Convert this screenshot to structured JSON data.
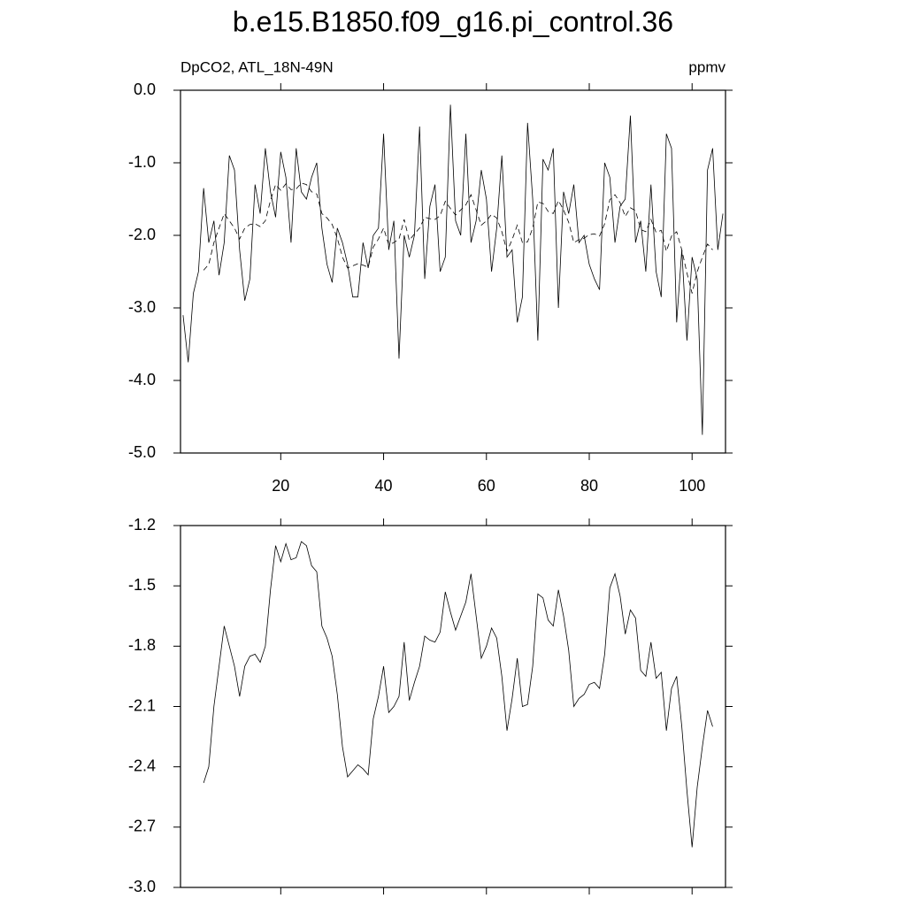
{
  "chart_data": [
    {
      "type": "line",
      "title": "b.e15.B1850.f09_g16.pi_control.36",
      "subtitle_left": "DpCO2, ATL_18N-49N",
      "subtitle_right": "ppmv",
      "x": [
        1,
        2,
        3,
        4,
        5,
        6,
        7,
        8,
        9,
        10,
        11,
        12,
        13,
        14,
        15,
        16,
        17,
        18,
        19,
        20,
        21,
        22,
        23,
        24,
        25,
        26,
        27,
        28,
        29,
        30,
        31,
        32,
        33,
        34,
        35,
        36,
        37,
        38,
        39,
        40,
        41,
        42,
        43,
        44,
        45,
        46,
        47,
        48,
        49,
        50,
        51,
        52,
        53,
        54,
        55,
        56,
        57,
        58,
        59,
        60,
        61,
        62,
        63,
        64,
        65,
        66,
        67,
        68,
        69,
        70,
        71,
        72,
        73,
        74,
        75,
        76,
        77,
        78,
        79,
        80,
        81,
        82,
        83,
        84,
        85,
        86,
        87,
        88,
        89,
        90,
        91,
        92,
        93,
        94,
        95,
        96,
        97,
        98,
        99,
        100,
        101,
        102,
        103,
        104,
        105,
        106
      ],
      "series": [
        {
          "color": "#000000",
          "dash": false,
          "values": [
            -3.1,
            -3.75,
            -2.8,
            -2.5,
            -1.35,
            -2.1,
            -1.8,
            -2.55,
            -2.1,
            -0.9,
            -1.1,
            -2.2,
            -2.9,
            -2.6,
            -1.3,
            -1.7,
            -0.8,
            -1.4,
            -1.75,
            -0.85,
            -1.2,
            -2.1,
            -0.8,
            -1.4,
            -1.5,
            -1.2,
            -1.0,
            -1.9,
            -2.4,
            -2.65,
            -1.9,
            -2.1,
            -2.4,
            -2.85,
            -2.85,
            -2.1,
            -2.45,
            -2.0,
            -1.9,
            -0.6,
            -2.2,
            -1.8,
            -3.7,
            -2.0,
            -2.3,
            -2.0,
            -0.5,
            -2.6,
            -1.6,
            -1.3,
            -2.5,
            -2.3,
            -0.2,
            -1.8,
            -2.0,
            -0.6,
            -2.1,
            -1.8,
            -1.1,
            -1.5,
            -2.5,
            -1.9,
            -0.9,
            -2.3,
            -2.2,
            -3.2,
            -2.85,
            -0.45,
            -1.5,
            -3.45,
            -0.95,
            -1.1,
            -0.8,
            -3.0,
            -1.4,
            -1.7,
            -1.3,
            -2.1,
            -2.0,
            -2.4,
            -2.6,
            -2.75,
            -1.0,
            -1.2,
            -2.1,
            -1.6,
            -1.5,
            -0.35,
            -2.1,
            -1.8,
            -2.5,
            -1.3,
            -2.5,
            -2.85,
            -0.6,
            -0.8,
            -3.2,
            -2.2,
            -3.45,
            -2.3,
            -2.6,
            -4.75,
            -1.1,
            -0.8,
            -2.2,
            -1.7
          ]
        },
        {
          "color": "#000000",
          "dash": true,
          "values": [
            null,
            null,
            null,
            null,
            -2.48,
            -2.4,
            -2.1,
            -1.9,
            -1.7,
            -1.8,
            -1.9,
            -2.05,
            -1.9,
            -1.85,
            -1.84,
            -1.88,
            -1.8,
            -1.52,
            -1.3,
            -1.38,
            -1.29,
            -1.37,
            -1.36,
            -1.28,
            -1.3,
            -1.4,
            -1.43,
            -1.7,
            -1.76,
            -1.85,
            -2.04,
            -2.3,
            -2.45,
            -2.42,
            -2.39,
            -2.41,
            -2.44,
            -2.16,
            -2.05,
            -1.9,
            -2.13,
            -2.1,
            -2.05,
            -1.78,
            -2.07,
            -1.98,
            -1.9,
            -1.75,
            -1.77,
            -1.78,
            -1.73,
            -1.53,
            -1.63,
            -1.72,
            -1.65,
            -1.58,
            -1.44,
            -1.65,
            -1.86,
            -1.8,
            -1.71,
            -1.76,
            -1.95,
            -2.22,
            -2.06,
            -1.86,
            -2.1,
            -2.09,
            -1.9,
            -1.54,
            -1.56,
            -1.67,
            -1.7,
            -1.52,
            -1.65,
            -1.82,
            -2.1,
            -2.06,
            -2.04,
            -1.99,
            -1.98,
            -2.01,
            -1.84,
            -1.51,
            -1.44,
            -1.55,
            -1.74,
            -1.62,
            -1.66,
            -1.92,
            -1.95,
            -1.78,
            -1.96,
            -1.93,
            -2.22,
            -2.01,
            -1.95,
            -2.2,
            -2.52,
            -2.8,
            -2.5,
            -2.3,
            -2.12,
            -2.2,
            null,
            null
          ]
        }
      ],
      "xlim": [
        0.5,
        106.5
      ],
      "xticks": [
        20,
        40,
        60,
        80,
        100
      ],
      "xtick_labels": true,
      "ylim": [
        -5,
        0
      ],
      "yticks": [
        {
          "value": 0,
          "label": "0.0"
        },
        {
          "value": -1,
          "label": "-1.0"
        },
        {
          "value": -2,
          "label": "-2.0"
        },
        {
          "value": -3,
          "label": "-3.0"
        },
        {
          "value": -4,
          "label": "-4.0"
        },
        {
          "value": -5,
          "label": "-5.0"
        }
      ]
    },
    {
      "type": "line",
      "x": [
        1,
        2,
        3,
        4,
        5,
        6,
        7,
        8,
        9,
        10,
        11,
        12,
        13,
        14,
        15,
        16,
        17,
        18,
        19,
        20,
        21,
        22,
        23,
        24,
        25,
        26,
        27,
        28,
        29,
        30,
        31,
        32,
        33,
        34,
        35,
        36,
        37,
        38,
        39,
        40,
        41,
        42,
        43,
        44,
        45,
        46,
        47,
        48,
        49,
        50,
        51,
        52,
        53,
        54,
        55,
        56,
        57,
        58,
        59,
        60,
        61,
        62,
        63,
        64,
        65,
        66,
        67,
        68,
        69,
        70,
        71,
        72,
        73,
        74,
        75,
        76,
        77,
        78,
        79,
        80,
        81,
        82,
        83,
        84,
        85,
        86,
        87,
        88,
        89,
        90,
        91,
        92,
        93,
        94,
        95,
        96,
        97,
        98,
        99,
        100,
        101,
        102,
        103,
        104,
        105,
        106
      ],
      "series": [
        {
          "color": "#000000",
          "dash": false,
          "values": [
            null,
            null,
            null,
            null,
            -2.48,
            -2.4,
            -2.1,
            -1.9,
            -1.7,
            -1.8,
            -1.9,
            -2.05,
            -1.9,
            -1.85,
            -1.84,
            -1.88,
            -1.8,
            -1.52,
            -1.3,
            -1.38,
            -1.29,
            -1.37,
            -1.36,
            -1.28,
            -1.3,
            -1.4,
            -1.43,
            -1.7,
            -1.76,
            -1.85,
            -2.04,
            -2.3,
            -2.45,
            -2.42,
            -2.39,
            -2.41,
            -2.44,
            -2.16,
            -2.05,
            -1.9,
            -2.13,
            -2.1,
            -2.05,
            -1.78,
            -2.07,
            -1.98,
            -1.9,
            -1.75,
            -1.77,
            -1.78,
            -1.73,
            -1.53,
            -1.63,
            -1.72,
            -1.65,
            -1.58,
            -1.44,
            -1.65,
            -1.86,
            -1.8,
            -1.71,
            -1.76,
            -1.95,
            -2.22,
            -2.06,
            -1.86,
            -2.1,
            -2.09,
            -1.9,
            -1.54,
            -1.56,
            -1.67,
            -1.7,
            -1.52,
            -1.65,
            -1.82,
            -2.1,
            -2.06,
            -2.04,
            -1.99,
            -1.98,
            -2.01,
            -1.84,
            -1.51,
            -1.44,
            -1.55,
            -1.74,
            -1.62,
            -1.66,
            -1.92,
            -1.95,
            -1.78,
            -1.96,
            -1.93,
            -2.22,
            -2.01,
            -1.95,
            -2.2,
            -2.52,
            -2.8,
            -2.5,
            -2.3,
            -2.12,
            -2.2,
            null,
            null
          ]
        }
      ],
      "xlim": [
        0.5,
        106.5
      ],
      "xticks": [
        20,
        40,
        60,
        80,
        100
      ],
      "xtick_labels": false,
      "ylim": [
        -3,
        -1.2
      ],
      "yticks": [
        {
          "value": -1.2,
          "label": "-1.2"
        },
        {
          "value": -1.5,
          "label": "-1.5"
        },
        {
          "value": -1.8,
          "label": "-1.8"
        },
        {
          "value": -2.1,
          "label": "-2.1"
        },
        {
          "value": -2.4,
          "label": "-2.4"
        },
        {
          "value": -2.7,
          "label": "-2.7"
        },
        {
          "value": -3,
          "label": "-3.0"
        }
      ]
    }
  ]
}
